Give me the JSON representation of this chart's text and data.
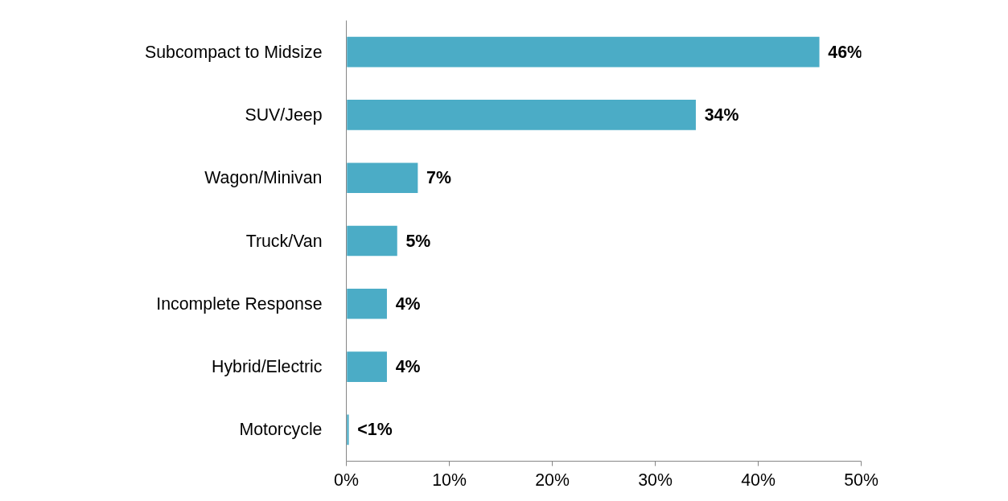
{
  "chart_data": {
    "type": "bar",
    "orientation": "horizontal",
    "categories": [
      "Subcompact to Midsize",
      "SUV/Jeep",
      "Wagon/Minivan",
      "Truck/Van",
      "Incomplete Response",
      "Hybrid/Electric",
      "Motorcycle"
    ],
    "values": [
      46,
      34,
      7,
      5,
      4,
      4,
      0.3
    ],
    "value_labels": [
      "46%",
      "34%",
      "7%",
      "5%",
      "4%",
      "4%",
      "<1%"
    ],
    "color": "#4bacc6",
    "xlim": [
      0,
      50
    ],
    "xticks": [
      {
        "value": 0,
        "label": "0%"
      },
      {
        "value": 10,
        "label": "10%"
      },
      {
        "value": 20,
        "label": "20%"
      },
      {
        "value": 30,
        "label": "30%"
      },
      {
        "value": 40,
        "label": "40%"
      },
      {
        "value": 50,
        "label": "50%"
      }
    ]
  }
}
